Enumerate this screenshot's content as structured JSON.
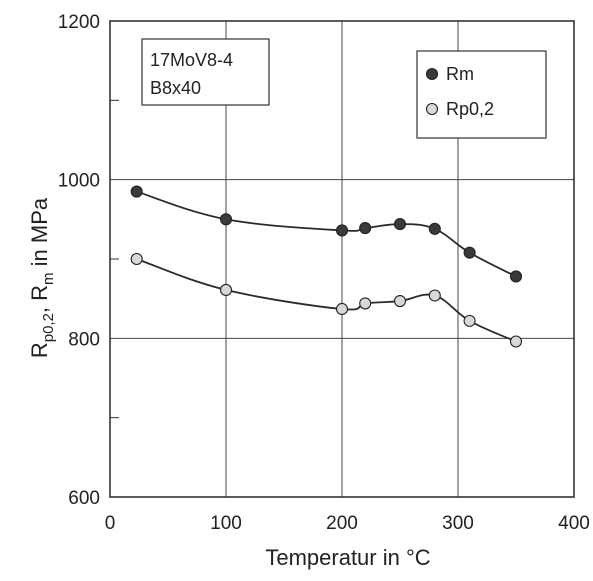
{
  "chart_data": {
    "type": "line",
    "title": "",
    "xlabel": "Temperatur  in °C",
    "ylabel": {
      "r": "R",
      "sub1": "p0,2",
      "sep": ", R",
      "sub2": "m",
      "unit": "  in MPa"
    },
    "xlim": [
      0,
      400
    ],
    "ylim": [
      600,
      1200
    ],
    "x_ticks": [
      "0",
      "100",
      "200",
      "300",
      "400"
    ],
    "y_ticks": [
      "600",
      "800",
      "1000",
      "1200"
    ],
    "grid": true,
    "legend_position": "top-right",
    "annotation": [
      "17MoV8-4",
      "B8x40"
    ],
    "series": [
      {
        "name": "Rm",
        "marker_color": "#3a3a3a",
        "points": [
          [
            23,
            985
          ],
          [
            100,
            950
          ],
          [
            200,
            936
          ],
          [
            220,
            939
          ],
          [
            250,
            944
          ],
          [
            280,
            938
          ],
          [
            310,
            908
          ],
          [
            350,
            878
          ]
        ]
      },
      {
        "name": "Rp0,2",
        "marker_color": "#d8d8d8",
        "points": [
          [
            23,
            900
          ],
          [
            100,
            861
          ],
          [
            200,
            837
          ],
          [
            220,
            844
          ],
          [
            250,
            847
          ],
          [
            280,
            854
          ],
          [
            310,
            822
          ],
          [
            350,
            796
          ]
        ]
      }
    ],
    "colors": {
      "line": "#2a2a2a",
      "grid": "#444444",
      "frame": "#333333"
    }
  }
}
